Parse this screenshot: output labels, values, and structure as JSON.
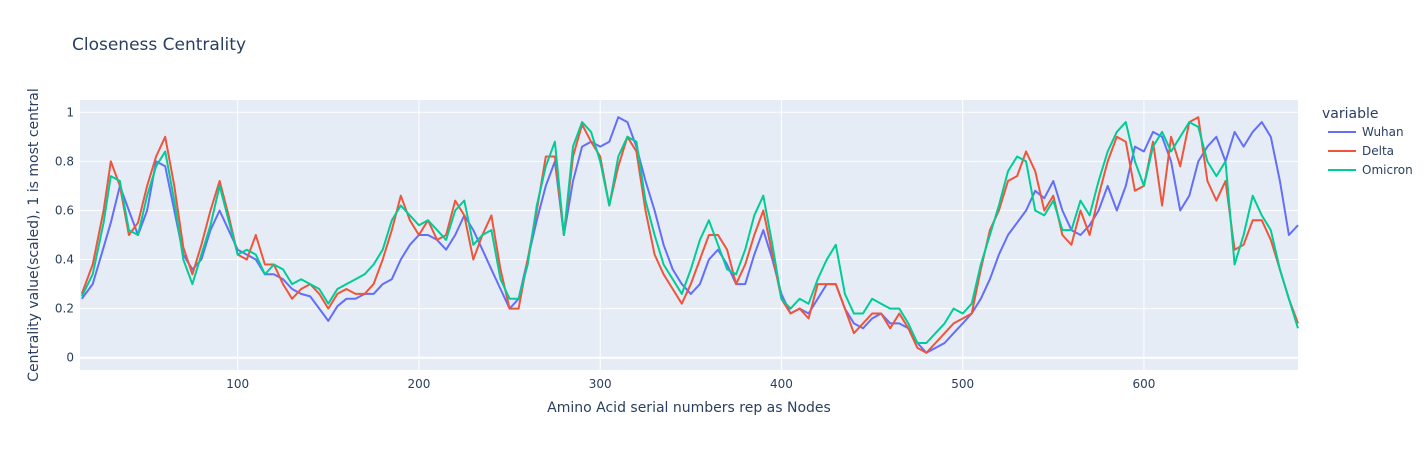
{
  "chart_data": {
    "type": "line",
    "title": "Closeness Centrality",
    "xlabel": "Amino Acid serial numbers rep as Nodes",
    "ylabel": "Centrality value(scaled), 1 is most central",
    "xlim": [
      13,
      685
    ],
    "ylim": [
      -0.05,
      1.05
    ],
    "xticks": [
      100,
      200,
      300,
      400,
      500,
      600
    ],
    "yticks": [
      0,
      0.2,
      0.4,
      0.6,
      0.8,
      1
    ],
    "grid": true,
    "legend": {
      "title": "variable",
      "position": "right"
    },
    "colors": {
      "Wuhan": "#636efa",
      "Delta": "#ef553b",
      "Omicron": "#00cc96",
      "plot_bg": "#e5ecf6"
    },
    "series": [
      {
        "name": "Wuhan",
        "x": [
          14,
          20,
          26,
          30,
          35,
          40,
          45,
          50,
          55,
          60,
          65,
          70,
          75,
          80,
          85,
          90,
          95,
          100,
          105,
          110,
          115,
          120,
          125,
          130,
          135,
          140,
          145,
          150,
          155,
          160,
          165,
          170,
          175,
          180,
          185,
          190,
          195,
          200,
          205,
          210,
          215,
          220,
          225,
          230,
          235,
          240,
          245,
          250,
          255,
          260,
          265,
          270,
          275,
          280,
          285,
          290,
          295,
          300,
          305,
          310,
          315,
          320,
          325,
          330,
          335,
          340,
          345,
          350,
          355,
          360,
          365,
          370,
          375,
          380,
          385,
          390,
          395,
          400,
          405,
          410,
          415,
          420,
          425,
          430,
          435,
          440,
          445,
          450,
          455,
          460,
          465,
          470,
          475,
          480,
          485,
          490,
          495,
          500,
          505,
          510,
          515,
          520,
          525,
          530,
          535,
          540,
          545,
          550,
          555,
          560,
          565,
          570,
          575,
          580,
          585,
          590,
          595,
          600,
          605,
          610,
          615,
          620,
          625,
          630,
          635,
          640,
          645,
          650,
          655,
          660,
          665,
          670,
          675,
          680,
          685
        ],
        "y": [
          0.24,
          0.3,
          0.45,
          0.55,
          0.7,
          0.6,
          0.5,
          0.6,
          0.8,
          0.78,
          0.6,
          0.42,
          0.36,
          0.4,
          0.52,
          0.6,
          0.52,
          0.44,
          0.42,
          0.4,
          0.34,
          0.34,
          0.32,
          0.28,
          0.26,
          0.25,
          0.2,
          0.15,
          0.21,
          0.24,
          0.24,
          0.26,
          0.26,
          0.3,
          0.32,
          0.4,
          0.46,
          0.5,
          0.5,
          0.48,
          0.44,
          0.5,
          0.58,
          0.52,
          0.44,
          0.36,
          0.28,
          0.2,
          0.24,
          0.4,
          0.56,
          0.7,
          0.8,
          0.5,
          0.72,
          0.86,
          0.88,
          0.86,
          0.88,
          0.98,
          0.96,
          0.86,
          0.72,
          0.6,
          0.46,
          0.36,
          0.3,
          0.26,
          0.3,
          0.4,
          0.44,
          0.38,
          0.3,
          0.3,
          0.42,
          0.52,
          0.4,
          0.26,
          0.18,
          0.2,
          0.18,
          0.24,
          0.3,
          0.3,
          0.2,
          0.14,
          0.12,
          0.16,
          0.18,
          0.14,
          0.14,
          0.12,
          0.06,
          0.02,
          0.04,
          0.06,
          0.1,
          0.14,
          0.18,
          0.24,
          0.32,
          0.42,
          0.5,
          0.55,
          0.6,
          0.68,
          0.65,
          0.72,
          0.6,
          0.52,
          0.5,
          0.54,
          0.6,
          0.7,
          0.6,
          0.7,
          0.86,
          0.84,
          0.92,
          0.9,
          0.8,
          0.6,
          0.66,
          0.8,
          0.86,
          0.9,
          0.8,
          0.92,
          0.86,
          0.92,
          0.96,
          0.9,
          0.72,
          0.5,
          0.54
        ]
      },
      {
        "name": "Delta",
        "x": [
          14,
          20,
          26,
          30,
          35,
          40,
          45,
          50,
          55,
          60,
          65,
          70,
          75,
          80,
          85,
          90,
          95,
          100,
          105,
          110,
          115,
          120,
          125,
          130,
          135,
          140,
          145,
          150,
          155,
          160,
          165,
          170,
          175,
          180,
          185,
          190,
          195,
          200,
          205,
          210,
          215,
          220,
          225,
          230,
          235,
          240,
          245,
          250,
          255,
          260,
          265,
          270,
          275,
          280,
          285,
          290,
          295,
          300,
          305,
          310,
          315,
          320,
          325,
          330,
          335,
          340,
          345,
          350,
          355,
          360,
          365,
          370,
          375,
          380,
          385,
          390,
          395,
          400,
          405,
          410,
          415,
          420,
          425,
          430,
          435,
          440,
          445,
          450,
          455,
          460,
          465,
          470,
          475,
          480,
          485,
          490,
          495,
          500,
          505,
          510,
          515,
          520,
          525,
          530,
          535,
          540,
          545,
          550,
          555,
          560,
          565,
          570,
          575,
          580,
          585,
          590,
          595,
          600,
          605,
          610,
          615,
          620,
          625,
          630,
          635,
          640,
          645,
          650,
          655,
          660,
          665,
          670,
          675,
          680,
          685
        ],
        "y": [
          0.26,
          0.38,
          0.6,
          0.8,
          0.7,
          0.5,
          0.55,
          0.7,
          0.82,
          0.9,
          0.7,
          0.45,
          0.34,
          0.46,
          0.6,
          0.72,
          0.58,
          0.42,
          0.4,
          0.5,
          0.38,
          0.38,
          0.3,
          0.24,
          0.28,
          0.3,
          0.26,
          0.2,
          0.26,
          0.28,
          0.26,
          0.26,
          0.3,
          0.4,
          0.52,
          0.66,
          0.56,
          0.5,
          0.56,
          0.48,
          0.5,
          0.64,
          0.58,
          0.4,
          0.5,
          0.58,
          0.36,
          0.2,
          0.2,
          0.4,
          0.6,
          0.82,
          0.82,
          0.5,
          0.82,
          0.95,
          0.88,
          0.82,
          0.62,
          0.78,
          0.9,
          0.84,
          0.6,
          0.42,
          0.34,
          0.28,
          0.22,
          0.3,
          0.4,
          0.5,
          0.5,
          0.44,
          0.3,
          0.38,
          0.5,
          0.6,
          0.42,
          0.24,
          0.18,
          0.2,
          0.16,
          0.3,
          0.3,
          0.3,
          0.2,
          0.1,
          0.14,
          0.18,
          0.18,
          0.12,
          0.18,
          0.12,
          0.04,
          0.02,
          0.06,
          0.1,
          0.14,
          0.16,
          0.18,
          0.36,
          0.52,
          0.6,
          0.72,
          0.74,
          0.84,
          0.76,
          0.6,
          0.66,
          0.5,
          0.46,
          0.6,
          0.5,
          0.66,
          0.8,
          0.9,
          0.88,
          0.68,
          0.7,
          0.88,
          0.62,
          0.9,
          0.78,
          0.96,
          0.98,
          0.72,
          0.64,
          0.72,
          0.44,
          0.46,
          0.56,
          0.56,
          0.48,
          0.36,
          0.24,
          0.14
        ]
      },
      {
        "name": "Omicron",
        "x": [
          14,
          20,
          26,
          30,
          35,
          40,
          45,
          50,
          55,
          60,
          65,
          70,
          75,
          80,
          85,
          90,
          95,
          100,
          105,
          110,
          115,
          120,
          125,
          130,
          135,
          140,
          145,
          150,
          155,
          160,
          165,
          170,
          175,
          180,
          185,
          190,
          195,
          200,
          205,
          210,
          215,
          220,
          225,
          230,
          235,
          240,
          245,
          250,
          255,
          260,
          265,
          270,
          275,
          280,
          285,
          290,
          295,
          300,
          305,
          310,
          315,
          320,
          325,
          330,
          335,
          340,
          345,
          350,
          355,
          360,
          365,
          370,
          375,
          380,
          385,
          390,
          395,
          400,
          405,
          410,
          415,
          420,
          425,
          430,
          435,
          440,
          445,
          450,
          455,
          460,
          465,
          470,
          475,
          480,
          485,
          490,
          495,
          500,
          505,
          510,
          515,
          520,
          525,
          530,
          535,
          540,
          545,
          550,
          555,
          560,
          565,
          570,
          575,
          580,
          585,
          590,
          595,
          600,
          605,
          610,
          615,
          620,
          625,
          630,
          635,
          640,
          645,
          650,
          655,
          660,
          665,
          670,
          675,
          680,
          685
        ],
        "y": [
          0.25,
          0.34,
          0.55,
          0.74,
          0.72,
          0.52,
          0.5,
          0.66,
          0.78,
          0.84,
          0.64,
          0.4,
          0.3,
          0.42,
          0.54,
          0.7,
          0.56,
          0.42,
          0.44,
          0.42,
          0.34,
          0.38,
          0.36,
          0.3,
          0.32,
          0.3,
          0.28,
          0.22,
          0.28,
          0.3,
          0.32,
          0.34,
          0.38,
          0.44,
          0.56,
          0.62,
          0.58,
          0.54,
          0.56,
          0.52,
          0.48,
          0.6,
          0.64,
          0.46,
          0.5,
          0.52,
          0.32,
          0.24,
          0.24,
          0.38,
          0.62,
          0.78,
          0.88,
          0.5,
          0.86,
          0.96,
          0.92,
          0.8,
          0.62,
          0.82,
          0.9,
          0.88,
          0.64,
          0.5,
          0.38,
          0.32,
          0.26,
          0.36,
          0.48,
          0.56,
          0.46,
          0.36,
          0.34,
          0.44,
          0.58,
          0.66,
          0.46,
          0.24,
          0.2,
          0.24,
          0.22,
          0.32,
          0.4,
          0.46,
          0.26,
          0.18,
          0.18,
          0.24,
          0.22,
          0.2,
          0.2,
          0.14,
          0.06,
          0.06,
          0.1,
          0.14,
          0.2,
          0.18,
          0.22,
          0.38,
          0.5,
          0.62,
          0.76,
          0.82,
          0.8,
          0.6,
          0.58,
          0.64,
          0.52,
          0.52,
          0.64,
          0.58,
          0.72,
          0.84,
          0.92,
          0.96,
          0.8,
          0.7,
          0.86,
          0.92,
          0.84,
          0.9,
          0.96,
          0.94,
          0.8,
          0.74,
          0.8,
          0.38,
          0.5,
          0.66,
          0.58,
          0.52,
          0.36,
          0.24,
          0.12
        ]
      }
    ]
  }
}
